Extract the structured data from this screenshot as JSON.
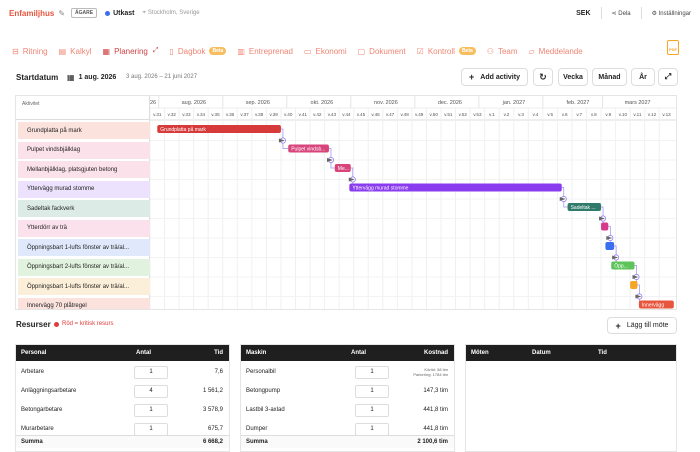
{
  "header": {
    "project_name": "Enfamiljhus",
    "owner_badge": "ÄGARE",
    "status": "Utkast",
    "location": "Stockholm, Sverige",
    "currency": "SEK",
    "share_label": "Dela",
    "settings_label": "Inställningar"
  },
  "tabs": [
    {
      "label": "Ritning",
      "icon": "ruler-icon"
    },
    {
      "label": "Kalkyl",
      "icon": "calculator-icon"
    },
    {
      "label": "Planering",
      "icon": "calendar-icon",
      "active": true
    },
    {
      "label": "Dagbok",
      "icon": "book-icon",
      "badge": "Beta"
    },
    {
      "label": "Entreprenad",
      "icon": "building-icon"
    },
    {
      "label": "Ekonomi",
      "icon": "wallet-icon"
    },
    {
      "label": "Dokument",
      "icon": "document-icon"
    },
    {
      "label": "Kontroll",
      "icon": "checklist-icon",
      "badge": "Beta"
    },
    {
      "label": "Team",
      "icon": "users-icon"
    },
    {
      "label": "Meddelande",
      "icon": "message-icon"
    }
  ],
  "pdf_label": "PDF",
  "toolbar": {
    "start_label": "Startdatum",
    "start_date": "1 aug. 2026",
    "range": "3 aug. 2026 – 21 juni 2027",
    "add_activity": "Add activity",
    "week": "Vecka",
    "month": "Månad",
    "year": "År"
  },
  "gantt": {
    "column_header": "Aktivitet",
    "months": [
      "aug. 2026",
      "sep. 2026",
      "okt. 2026",
      "nov. 2026",
      "dec. 2026",
      "jan. 2027",
      "feb. 2027",
      "mars 2027"
    ],
    "weeks": [
      "v.31",
      "v.32",
      "v.33",
      "v.34",
      "v.35",
      "v.36",
      "v.37",
      "v.38",
      "v.39",
      "v.40",
      "v.41",
      "v.42",
      "v.43",
      "v.44",
      "v.45",
      "v.46",
      "v.47",
      "v.48",
      "v.49",
      "v.50",
      "v.51",
      "v.52",
      "v.53",
      "v.1",
      "v.2",
      "v.3",
      "v.4",
      "v.5",
      "v.6",
      "v.7",
      "v.8",
      "v.9",
      "v.10",
      "v.11",
      "v.12",
      "v.13"
    ],
    "first_week_prefix": "26",
    "activities": [
      {
        "name": "Grundplatta på mark",
        "bar_label": "Grundplatta på mark",
        "color": "#d63a3a",
        "row_bg": "#fbe2dd",
        "start_week": 0.5,
        "end_week": 9.0
      },
      {
        "name": "Pulpet vindsbjälklag",
        "bar_label": "Pulpet vindsb...",
        "color": "#d8457a",
        "row_bg": "#fbe1ea",
        "start_week": 9.5,
        "end_week": 12.3
      },
      {
        "name": "Mellanbjälklag, platsgjuten betong",
        "bar_label": "Me...",
        "color": "#d8457a",
        "row_bg": "#fbe1ea",
        "start_week": 12.7,
        "end_week": 13.8
      },
      {
        "name": "Yttervägg murad stomme",
        "bar_label": "Yttervägg murad stomme",
        "color": "#8a3bf0",
        "row_bg": "#ece2fd",
        "start_week": 13.7,
        "end_week": 28.3
      },
      {
        "name": "Sadeltak fackverk",
        "bar_label": "Sadeltak ...",
        "color": "#2f7a6a",
        "row_bg": "#dcebe5",
        "start_week": 28.7,
        "end_week": 31.0
      },
      {
        "name": "Ytterdörr av trä",
        "bar_label": "",
        "color": "#d63a8a",
        "row_bg": "#fbe1ec",
        "start_week": 31.0,
        "end_week": 31.5
      },
      {
        "name": "Öppningsbart 1-lufts fönster av trä/al...",
        "bar_label": "",
        "color": "#3b6ef0",
        "row_bg": "#e0e9fb",
        "start_week": 31.3,
        "end_week": 31.9
      },
      {
        "name": "Öppningsbart 2-lufts fönster av trä/al...",
        "bar_label": "Öpp...",
        "color": "#5cc45a",
        "row_bg": "#e1f3df",
        "start_week": 31.7,
        "end_week": 33.3
      },
      {
        "name": "Öppningsbart 1-lufts fönster av trä/al...",
        "bar_label": "",
        "color": "#f5a623",
        "row_bg": "#fcefd9",
        "start_week": 33.0,
        "end_week": 33.5
      },
      {
        "name": "Innervägg 70 plåtregel",
        "bar_label": "Innervägg",
        "color": "#e8553d",
        "row_bg": "#fbe2dd",
        "start_week": 33.6,
        "end_week": 36.0
      }
    ]
  },
  "resources": {
    "title": "Resurser",
    "critical_note": "Röd = kritisk resurs",
    "add_meeting": "Lägg till möte",
    "personal": {
      "headers": [
        "Personal",
        "Antal",
        "Tid"
      ],
      "rows": [
        {
          "name": "Arbetare",
          "qty": "1",
          "time": "7,6"
        },
        {
          "name": "Anläggningsarbetare",
          "qty": "4",
          "time": "1 561,2"
        },
        {
          "name": "Betongarbetare",
          "qty": "1",
          "time": "3 578,9"
        },
        {
          "name": "Murarbetare",
          "qty": "1",
          "time": "675,7"
        }
      ],
      "sum_label": "Summa",
      "sum_time": "6 668,2"
    },
    "machines": {
      "headers": [
        "Maskin",
        "Antal",
        "Kostnad"
      ],
      "rows": [
        {
          "name": "Personalbil",
          "qty": "1",
          "time": "",
          "sub1": "Körtid: 58 tim",
          "sub2": "Parkering: 1784 tim"
        },
        {
          "name": "Betongpump",
          "qty": "1",
          "time": "147,3 tim"
        },
        {
          "name": "Lastbil 3-axlad",
          "qty": "1",
          "time": "441,8 tim"
        },
        {
          "name": "Dumper",
          "qty": "1",
          "time": "441,8 tim"
        }
      ],
      "sum_label": "Summa",
      "sum_time": "2 100,6 tim"
    },
    "meetings": {
      "headers": [
        "Möten",
        "Datum",
        "Tid"
      ]
    }
  },
  "colors": {
    "accent": "#e8553d",
    "dark_header": "#1f1f1f",
    "milestone": "#8a6cf0"
  }
}
